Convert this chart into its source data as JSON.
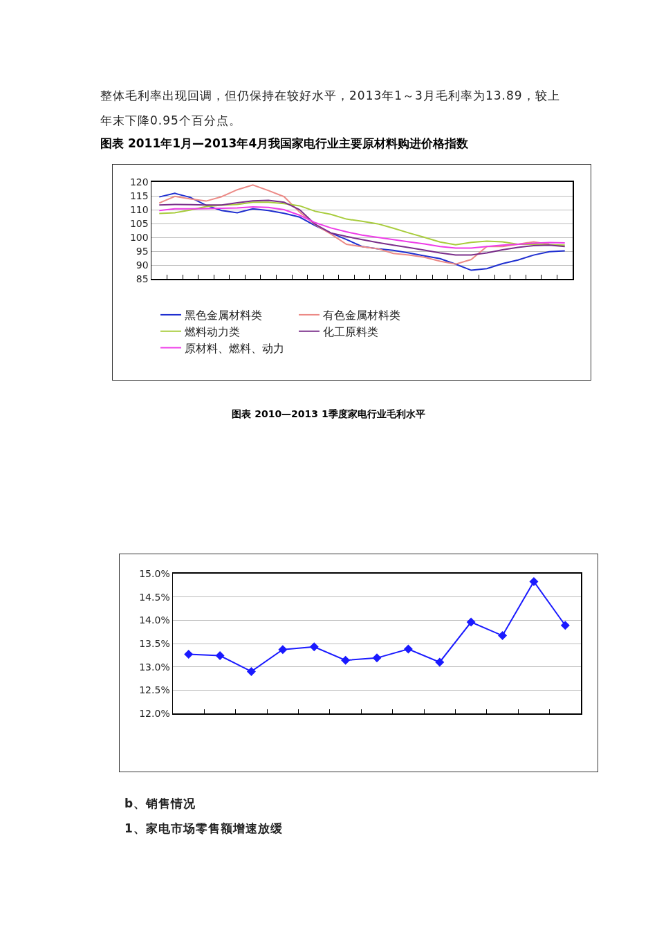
{
  "chart_data": [
    {
      "type": "line",
      "title": "图表 2011年1月—2013年4月我国家电行业主要原材料购进价格指数",
      "annotations": [
        "整体毛利率出现回调，但仍保持在较好水平，2013年1～3月毛利率为13.89，较上年末下降0.95个百分点。"
      ],
      "categories": [
        null,
        null,
        null,
        null,
        null,
        null,
        null,
        null,
        null,
        null,
        null,
        null,
        null,
        null,
        null,
        null,
        null,
        null,
        null,
        null,
        null,
        null,
        null,
        null,
        null,
        null,
        null
      ],
      "ylim": [
        85,
        120
      ],
      "yticks": [
        85,
        90,
        95,
        100,
        105,
        110,
        115,
        120
      ],
      "grid": "y",
      "legend": "bottom",
      "marker": "none",
      "series": [
        {
          "name": "黑色金属材料类",
          "color": "#1f2fd0",
          "values": [
            114.6,
            115.9,
            114.4,
            111.6,
            109.7,
            108.9,
            110.3,
            109.7,
            108.7,
            107.3,
            104.2,
            101.6,
            99.2,
            96.7,
            95.9,
            95.3,
            94.4,
            93.3,
            92.3,
            90.3,
            88.1,
            88.7,
            90.5,
            91.8,
            93.6,
            94.8,
            95.1
          ]
        },
        {
          "name": "有色金属材料类",
          "color": "#ec8a86",
          "values": [
            112.4,
            114.8,
            113.9,
            113.1,
            114.7,
            117.2,
            118.9,
            116.9,
            114.7,
            109.1,
            104.5,
            101.2,
            97.5,
            96.6,
            95.9,
            94.2,
            93.6,
            92.8,
            91.4,
            90.3,
            92.0,
            96.7,
            96.7,
            97.5,
            98.4,
            97.5,
            null
          ]
        },
        {
          "name": "燃料动力类",
          "color": "#a8cc3c",
          "values": [
            108.6,
            108.9,
            109.9,
            111.1,
            111.6,
            111.9,
            112.7,
            112.7,
            112.2,
            111.4,
            109.4,
            108.3,
            106.6,
            105.8,
            104.9,
            103.3,
            101.6,
            100.0,
            98.3,
            97.3,
            98.2,
            98.6,
            98.4,
            97.5,
            97.5,
            97.3,
            97.2
          ]
        },
        {
          "name": "化工原料类",
          "color": "#7a2e8a",
          "values": [
            111.7,
            111.9,
            111.8,
            111.7,
            111.7,
            112.5,
            113.2,
            113.4,
            112.7,
            110.0,
            104.7,
            101.6,
            100.3,
            99.2,
            98.1,
            97.2,
            96.3,
            95.4,
            94.4,
            93.6,
            93.6,
            94.4,
            95.5,
            96.4,
            97.0,
            97.2,
            96.7
          ]
        },
        {
          "name": "原材料、燃料、动力",
          "color": "#ee3ce8",
          "values": [
            109.7,
            110.3,
            110.3,
            110.4,
            110.5,
            110.6,
            111.0,
            110.8,
            110.0,
            108.0,
            105.3,
            103.4,
            102.0,
            100.8,
            100.0,
            99.2,
            98.4,
            97.6,
            96.7,
            96.1,
            96.1,
            96.7,
            97.2,
            97.5,
            97.9,
            98.1,
            98.0
          ]
        }
      ]
    },
    {
      "type": "line",
      "title": "图表 2010—2013 1季度家电行业毛利水平",
      "annotations": [
        "b、销售情况",
        "1、家电市场零售额增速放缓"
      ],
      "categories": [
        null,
        null,
        null,
        null,
        null,
        null,
        null,
        null,
        null,
        null,
        null,
        null,
        null
      ],
      "ylim": [
        12,
        15
      ],
      "yticks": [
        {
          "value": 12,
          "label": "12.0%"
        },
        {
          "value": 12.5,
          "label": "12.5%"
        },
        {
          "value": 13,
          "label": "13.0%"
        },
        {
          "value": 13.5,
          "label": "13.5%"
        },
        {
          "value": 14,
          "label": "14.0%"
        },
        {
          "value": 14.5,
          "label": "14.5%"
        },
        {
          "value": 15,
          "label": "15.0%"
        }
      ],
      "grid": "y",
      "marker": "diamond",
      "series": [
        {
          "color": "#1a1aff",
          "values": [
            13.27,
            13.24,
            12.9,
            13.37,
            13.43,
            13.14,
            13.19,
            13.38,
            13.1,
            13.96,
            13.67,
            14.83,
            13.89
          ]
        }
      ]
    }
  ]
}
